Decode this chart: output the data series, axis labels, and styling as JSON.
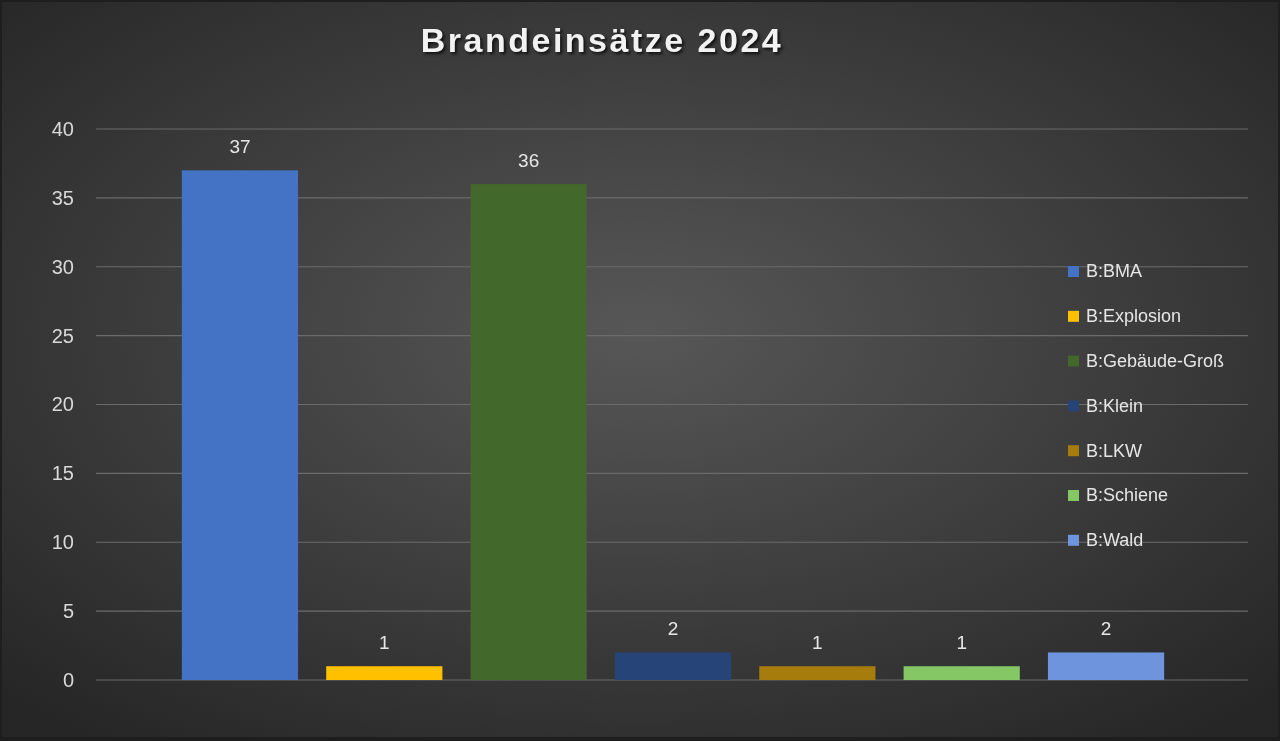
{
  "chart_data": {
    "type": "bar",
    "title": "Brandeinsätze 2024",
    "categories": [
      null
    ],
    "series": [
      {
        "name": "B:BMA",
        "color": "#4472c4",
        "values": [
          37
        ]
      },
      {
        "name": "B:Explosion",
        "color": "#ffc000",
        "values": [
          1
        ]
      },
      {
        "name": "B:Gebäude-Groß",
        "color": "#43682b",
        "values": [
          36
        ]
      },
      {
        "name": "B:Klein",
        "color": "#264478",
        "values": [
          2
        ]
      },
      {
        "name": "B:LKW",
        "color": "#a67c0c",
        "values": [
          1
        ]
      },
      {
        "name": "B:Schiene",
        "color": "#86c765",
        "values": [
          1
        ]
      },
      {
        "name": "B:Wald",
        "color": "#6d94dc",
        "values": [
          2
        ]
      }
    ],
    "ylim": [
      0,
      40
    ],
    "yticks": [
      0,
      5,
      10,
      15,
      20,
      25,
      30,
      35,
      40
    ],
    "grid": "y",
    "legend": "right",
    "data_labels": true,
    "tick_labels": "y"
  }
}
